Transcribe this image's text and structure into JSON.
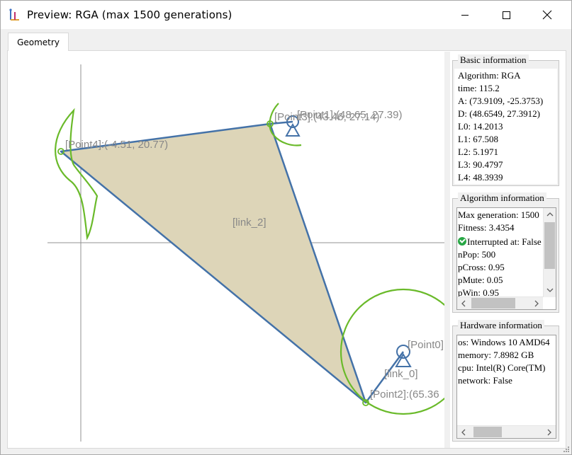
{
  "window": {
    "title": "Preview: RGA (max 1500 generations)"
  },
  "tabs": [
    {
      "label": "Geometry"
    }
  ],
  "canvas": {
    "labels": {
      "point4": "[Point4]:(-4.51, 20.77)",
      "point1": "[Point1]:(48.65, 27.39)",
      "point3": "[Point3]:(43.46, 27.14)",
      "point0": "[Point0]",
      "point2": "[Point2]:(65.36",
      "link2": "[link_2]",
      "link0": "[link_0]"
    },
    "colors": {
      "link": "#4472a8",
      "path": "#6aba2a",
      "fill": "#ddd5b8",
      "label": "#888888",
      "axis": "#909090"
    }
  },
  "basic_info": {
    "title": "Basic information",
    "lines": [
      "Algorithm: RGA",
      "time: 115.2",
      "A: (73.9109, -25.3753)",
      "D: (48.6549, 27.3912)",
      "L0: 14.2013",
      "L1: 67.508",
      "L2: 5.1971",
      "L3: 90.4797",
      "L4: 48.3939"
    ]
  },
  "algorithm_info": {
    "title": "Algorithm information",
    "lines": [
      "Max generation: 1500",
      "Fitness: 3.4354",
      "Interrupted at: False",
      "nPop: 500",
      "pCross: 0.95",
      "pMute: 0.05",
      "pWin: 0.95"
    ],
    "check_icon": "check-circle-icon"
  },
  "hardware_info": {
    "title": "Hardware information",
    "lines": [
      "os: Windows 10 AMD64",
      "memory: 7.8982 GB",
      "cpu: Intel(R) Core(TM)",
      "network: False"
    ]
  }
}
